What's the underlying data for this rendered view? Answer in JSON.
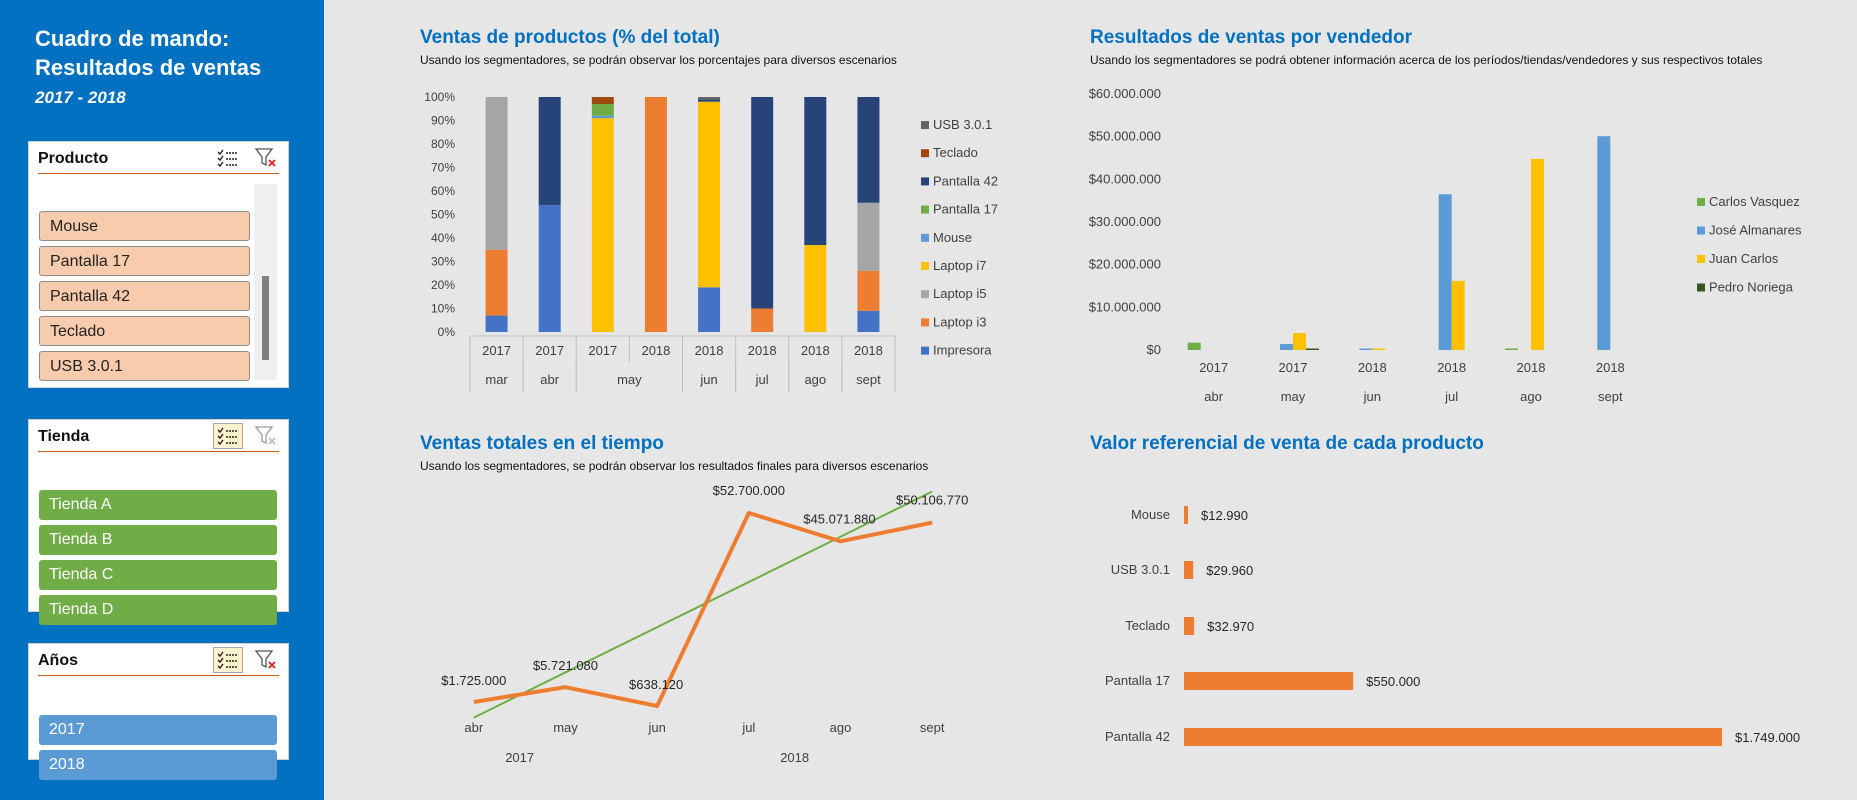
{
  "dashboard": {
    "title": "Cuadro de mando:\nResultados de ventas",
    "years": "2017 - 2018"
  },
  "slicers": {
    "producto": {
      "title": "Producto",
      "items": [
        "Mouse",
        "Pantalla 17",
        "Pantalla 42",
        "Teclado",
        "USB 3.0.1"
      ]
    },
    "tienda": {
      "title": "Tienda",
      "items": [
        "Tienda A",
        "Tienda B",
        "Tienda C",
        "Tienda D"
      ]
    },
    "anios": {
      "title": "Años",
      "items": [
        "2017",
        "2018"
      ]
    }
  },
  "colors": {
    "sidebar": "#0070c0",
    "product_item": "#f8cbad",
    "store_item": "#70ad47",
    "year_item": "#5b9bd5",
    "title_blue": "#0070c0",
    "orange": "#ed7d31"
  },
  "charts_text": {
    "c1_title": "Ventas de productos (% del total)",
    "c1_sub": "Usando los segmentadores, se podrán observar los porcentajes para diversos escenarios",
    "c2_title": "Resultados de ventas por vendedor",
    "c2_sub": "Usando los segmentadores se podrá obtener información acerca de los períodos/tiendas/vendedores y sus respectivos totales",
    "c3_title": "Ventas totales en el tiempo",
    "c3_sub": "Usando los segmentadores, se podrán observar los resultados finales para diversos escenarios",
    "c4_title": "Valor referencial de venta de cada producto"
  },
  "chart_data": [
    {
      "type": "bar",
      "stacked": "percent",
      "title": "Ventas de productos (% del total)",
      "categories": [
        {
          "year": "2017",
          "month": "mar"
        },
        {
          "year": "2017",
          "month": "abr"
        },
        {
          "year": "2017",
          "month": "may"
        },
        {
          "year": "2018",
          "month": "may"
        },
        {
          "year": "2018",
          "month": "jun"
        },
        {
          "year": "2018",
          "month": "jul"
        },
        {
          "year": "2018",
          "month": "ago"
        },
        {
          "year": "2018",
          "month": "sept"
        }
      ],
      "yticks": [
        "0%",
        "10%",
        "20%",
        "30%",
        "40%",
        "50%",
        "60%",
        "70%",
        "80%",
        "90%",
        "100%"
      ],
      "series": [
        {
          "name": "Impresora",
          "color": "#4472c4",
          "values": [
            7,
            54,
            0,
            0,
            19,
            0,
            0,
            9
          ]
        },
        {
          "name": "Laptop i3",
          "color": "#ed7d31",
          "values": [
            28,
            0,
            0,
            100,
            0,
            10,
            0,
            17
          ]
        },
        {
          "name": "Laptop i5",
          "color": "#a5a5a5",
          "values": [
            65,
            0,
            0,
            0,
            0,
            0,
            0,
            29
          ]
        },
        {
          "name": "Laptop i7",
          "color": "#ffc000",
          "values": [
            0,
            0,
            91,
            0,
            79,
            0,
            37,
            0
          ]
        },
        {
          "name": "Mouse",
          "color": "#5b9bd5",
          "values": [
            0,
            0,
            1,
            0,
            0,
            0,
            0,
            0
          ]
        },
        {
          "name": "Pantalla 17",
          "color": "#70ad47",
          "values": [
            0,
            0,
            5,
            0,
            0,
            0,
            0,
            0
          ]
        },
        {
          "name": "Pantalla 42",
          "color": "#264478",
          "values": [
            0,
            46,
            0,
            0,
            1,
            90,
            63,
            45
          ]
        },
        {
          "name": "Teclado",
          "color": "#9e480e",
          "values": [
            0,
            0,
            3,
            0,
            0,
            0,
            0,
            0
          ]
        },
        {
          "name": "USB 3.0.1",
          "color": "#636363",
          "values": [
            0,
            0,
            0,
            0,
            1,
            0,
            0,
            0
          ]
        }
      ],
      "legend_order": [
        "USB 3.0.1",
        "Teclado",
        "Pantalla 42",
        "Pantalla 17",
        "Mouse",
        "Laptop i7",
        "Laptop i5",
        "Laptop i3",
        "Impresora"
      ],
      "ylim": [
        0,
        100
      ]
    },
    {
      "type": "bar",
      "title": "Resultados de ventas por vendedor",
      "categories": [
        {
          "year": "2017",
          "month": "abr"
        },
        {
          "year": "2017",
          "month": "may"
        },
        {
          "year": "2018",
          "month": "jun"
        },
        {
          "year": "2018",
          "month": "jul"
        },
        {
          "year": "2018",
          "month": "ago"
        },
        {
          "year": "2018",
          "month": "sept"
        }
      ],
      "yticks": [
        "$0",
        "$10.000.000",
        "$20.000.000",
        "$30.000.000",
        "$40.000.000",
        "$50.000.000",
        "$60.000.000"
      ],
      "series": [
        {
          "name": "Carlos Vasquez",
          "color": "#70ad47",
          "values": [
            1725000,
            0,
            0,
            0,
            300000,
            0
          ]
        },
        {
          "name": "José Almanares",
          "color": "#5b9bd5",
          "values": [
            0,
            1400000,
            300000,
            36500000,
            0,
            50106770
          ]
        },
        {
          "name": "Juan Carlos",
          "color": "#ffc000",
          "values": [
            0,
            4000000,
            338120,
            16200000,
            44771880,
            0
          ]
        },
        {
          "name": "Pedro Noriega",
          "color": "#375623",
          "values": [
            0,
            321080,
            0,
            0,
            0,
            0
          ]
        }
      ],
      "ylim": [
        0,
        60000000
      ]
    },
    {
      "type": "line",
      "title": "Ventas totales en el tiempo",
      "categories": [
        {
          "year": "2017",
          "month": "abr"
        },
        {
          "year": "2017",
          "month": "may"
        },
        {
          "year": "2018",
          "month": "jun"
        },
        {
          "year": "2018",
          "month": "jul"
        },
        {
          "year": "2018",
          "month": "ago"
        },
        {
          "year": "2018",
          "month": "sept"
        }
      ],
      "series": [
        {
          "color": "#ed7d31",
          "values": [
            1725000,
            5721080,
            638120,
            52700000,
            45071880,
            50106770
          ]
        }
      ],
      "labels": [
        "$1.725.000",
        "$5.721.080",
        "$638.120",
        "$52.700.000",
        "$45.071.880",
        "$50.106.770"
      ],
      "trendline": {
        "color": "#70ad47",
        "from": -2500000,
        "to": 58500000
      },
      "ylim": [
        0,
        60000000
      ]
    },
    {
      "type": "bar",
      "orientation": "horizontal",
      "title": "Valor referencial de venta de cada producto",
      "categories": [
        "Mouse",
        "USB 3.0.1",
        "Teclado",
        "Pantalla 17",
        "Pantalla 42"
      ],
      "values": [
        12990,
        29960,
        32970,
        550000,
        1749000
      ],
      "labels": [
        "$12.990",
        "$29.960",
        "$32.970",
        "$550.000",
        "$1.749.000"
      ],
      "color": "#ed7d31",
      "xlim": [
        0,
        1749000
      ]
    }
  ]
}
